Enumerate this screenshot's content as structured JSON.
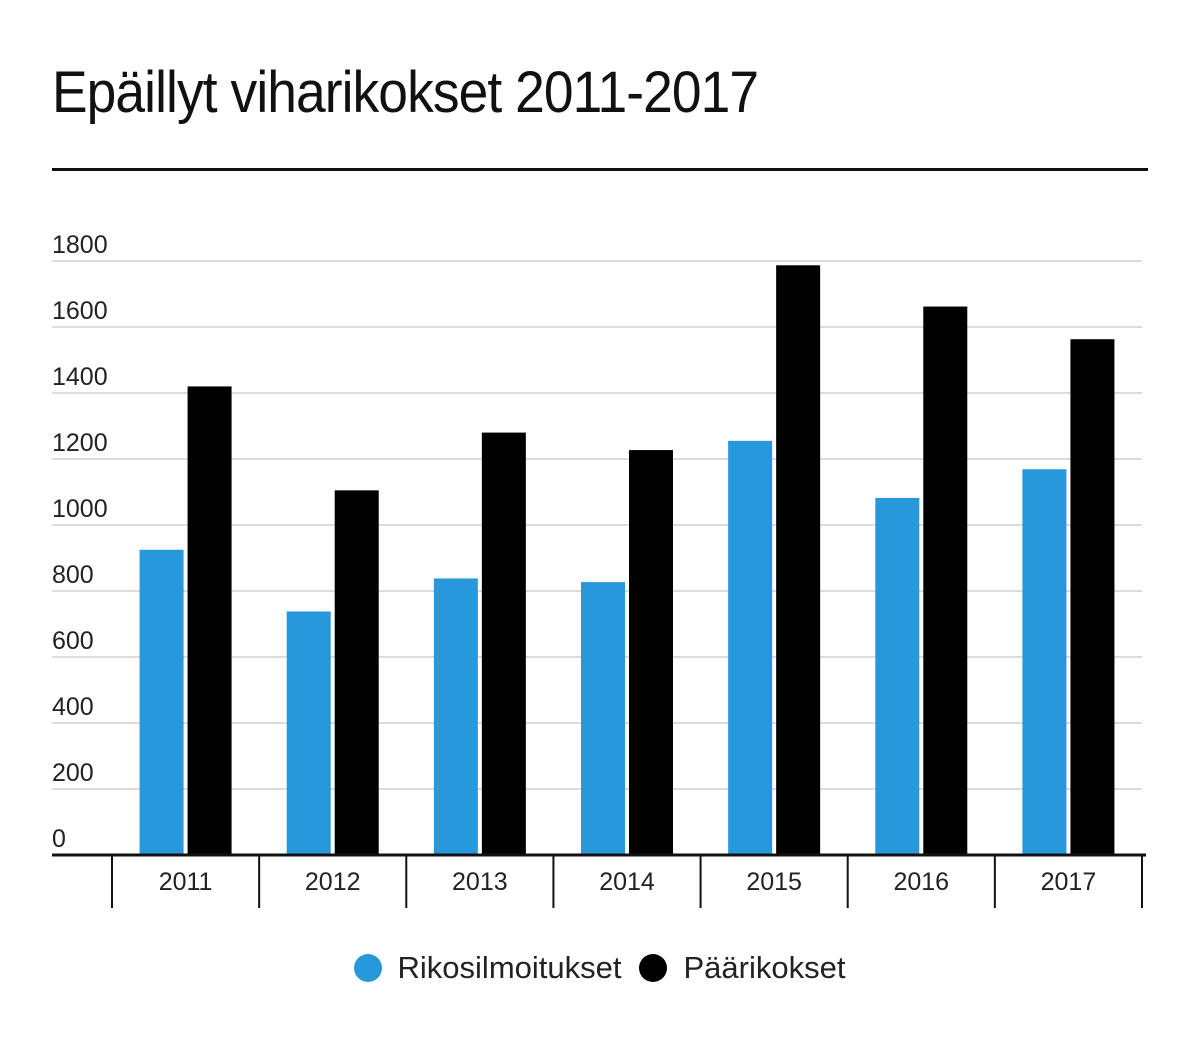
{
  "chart_data": {
    "type": "bar",
    "title": "Epäillyt viharikokset 2011-2017",
    "categories": [
      "2011",
      "2012",
      "2013",
      "2014",
      "2015",
      "2016",
      "2017"
    ],
    "series": [
      {
        "name": "Rikosilmoitukset",
        "color": "#2798da",
        "values": [
          925,
          738,
          838,
          827,
          1255,
          1082,
          1169
        ]
      },
      {
        "name": "Päärikokset",
        "color": "#000000",
        "values": [
          1420,
          1105,
          1280,
          1227,
          1787,
          1662,
          1563
        ]
      }
    ],
    "yticks": [
      "0",
      "200",
      "400",
      "600",
      "800",
      "1000",
      "1200",
      "1400",
      "1600",
      "1800"
    ],
    "ylim": [
      0,
      1800
    ],
    "xlabel": "",
    "ylabel": "",
    "grid": true,
    "legend_position": "bottom-center"
  },
  "legend": {
    "items": [
      {
        "label": "Rikosilmoitukset",
        "color": "#2798da"
      },
      {
        "label": "Päärikokset",
        "color": "#000000"
      }
    ]
  }
}
